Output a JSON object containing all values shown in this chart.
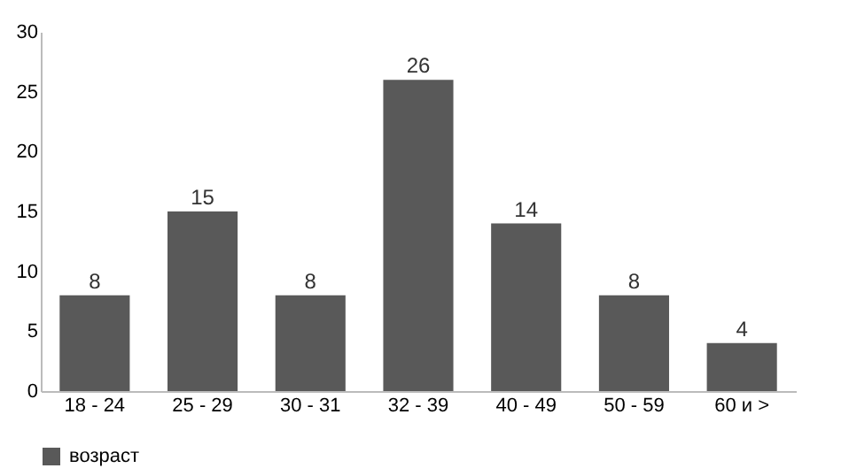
{
  "chart_data": {
    "type": "bar",
    "categories": [
      "18 - 24",
      "25 - 29",
      "30 - 31",
      "32 - 39",
      "40 - 49",
      "50 - 59",
      "60 и >"
    ],
    "series": [
      {
        "name": "возраст",
        "color": "#595959",
        "values": [
          8,
          15,
          8,
          26,
          14,
          8,
          4
        ]
      }
    ],
    "ylim": [
      0,
      30
    ],
    "yticks": [
      0,
      5,
      10,
      15,
      20,
      25,
      30
    ],
    "data_labels": true,
    "legend": "bottom",
    "grid": false
  }
}
